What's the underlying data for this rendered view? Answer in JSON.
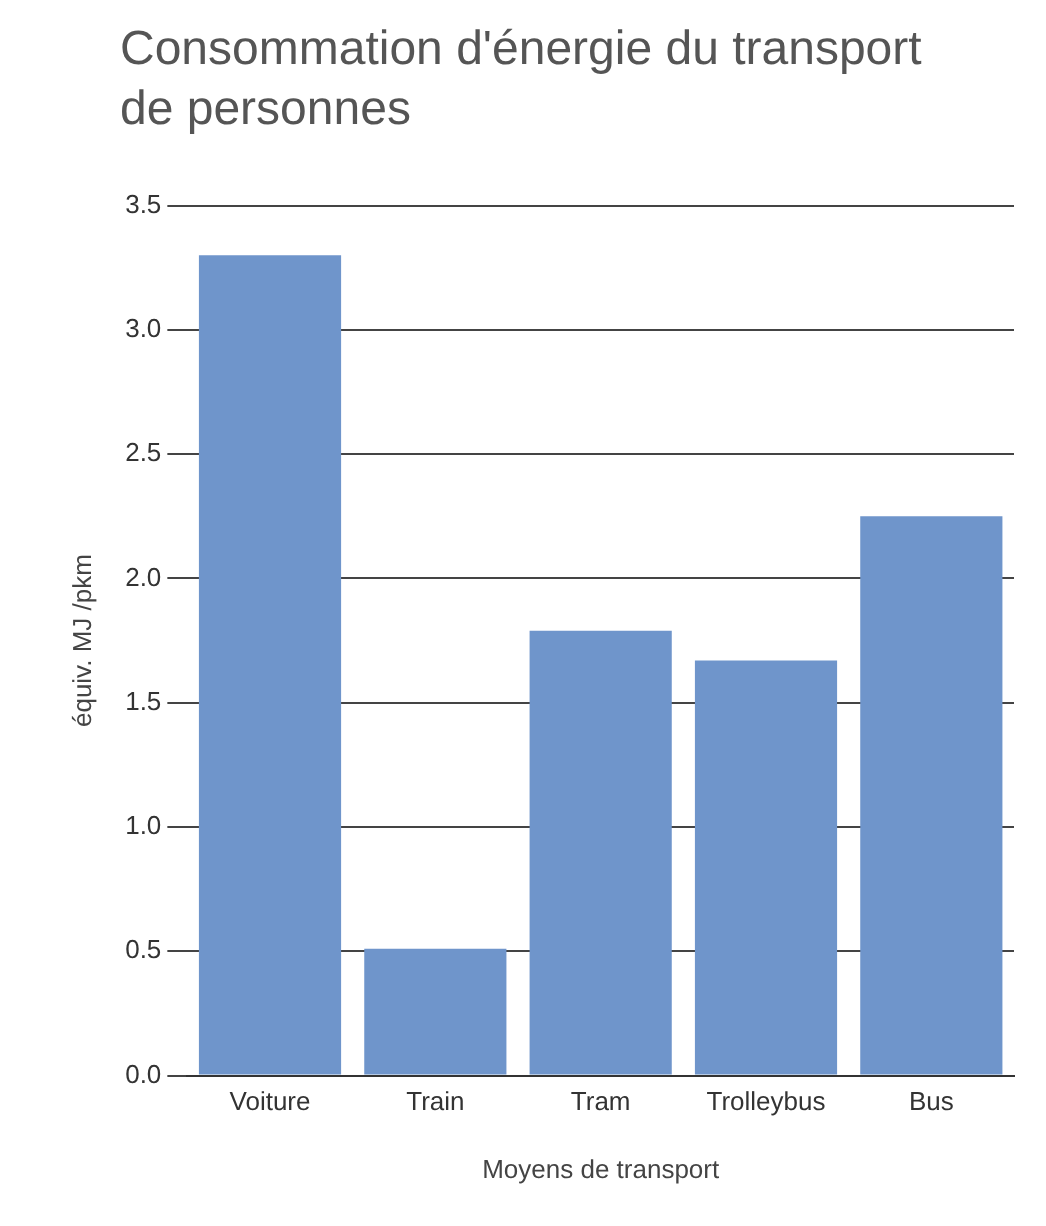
{
  "chart_data": {
    "type": "bar",
    "title": "Consommation d'énergie du transport de personnes",
    "xlabel": "Moyens de transport",
    "ylabel": "équiv. MJ /pkm",
    "categories": [
      "Voiture",
      "Train",
      "Tram",
      "Trolleybus",
      "Bus"
    ],
    "values": [
      3.3,
      0.51,
      1.79,
      1.67,
      2.25
    ],
    "color": "#6f95cb",
    "ylim": [
      0,
      3.5
    ],
    "yticks": [
      {
        "value": 0,
        "label": "0.0"
      },
      0.5,
      {
        "value": 1,
        "label": "1.0"
      },
      1.5,
      {
        "value": 2,
        "label": "2.0"
      },
      2.5,
      {
        "value": 3,
        "label": "3.0"
      },
      3.5
    ],
    "grid": "y"
  }
}
